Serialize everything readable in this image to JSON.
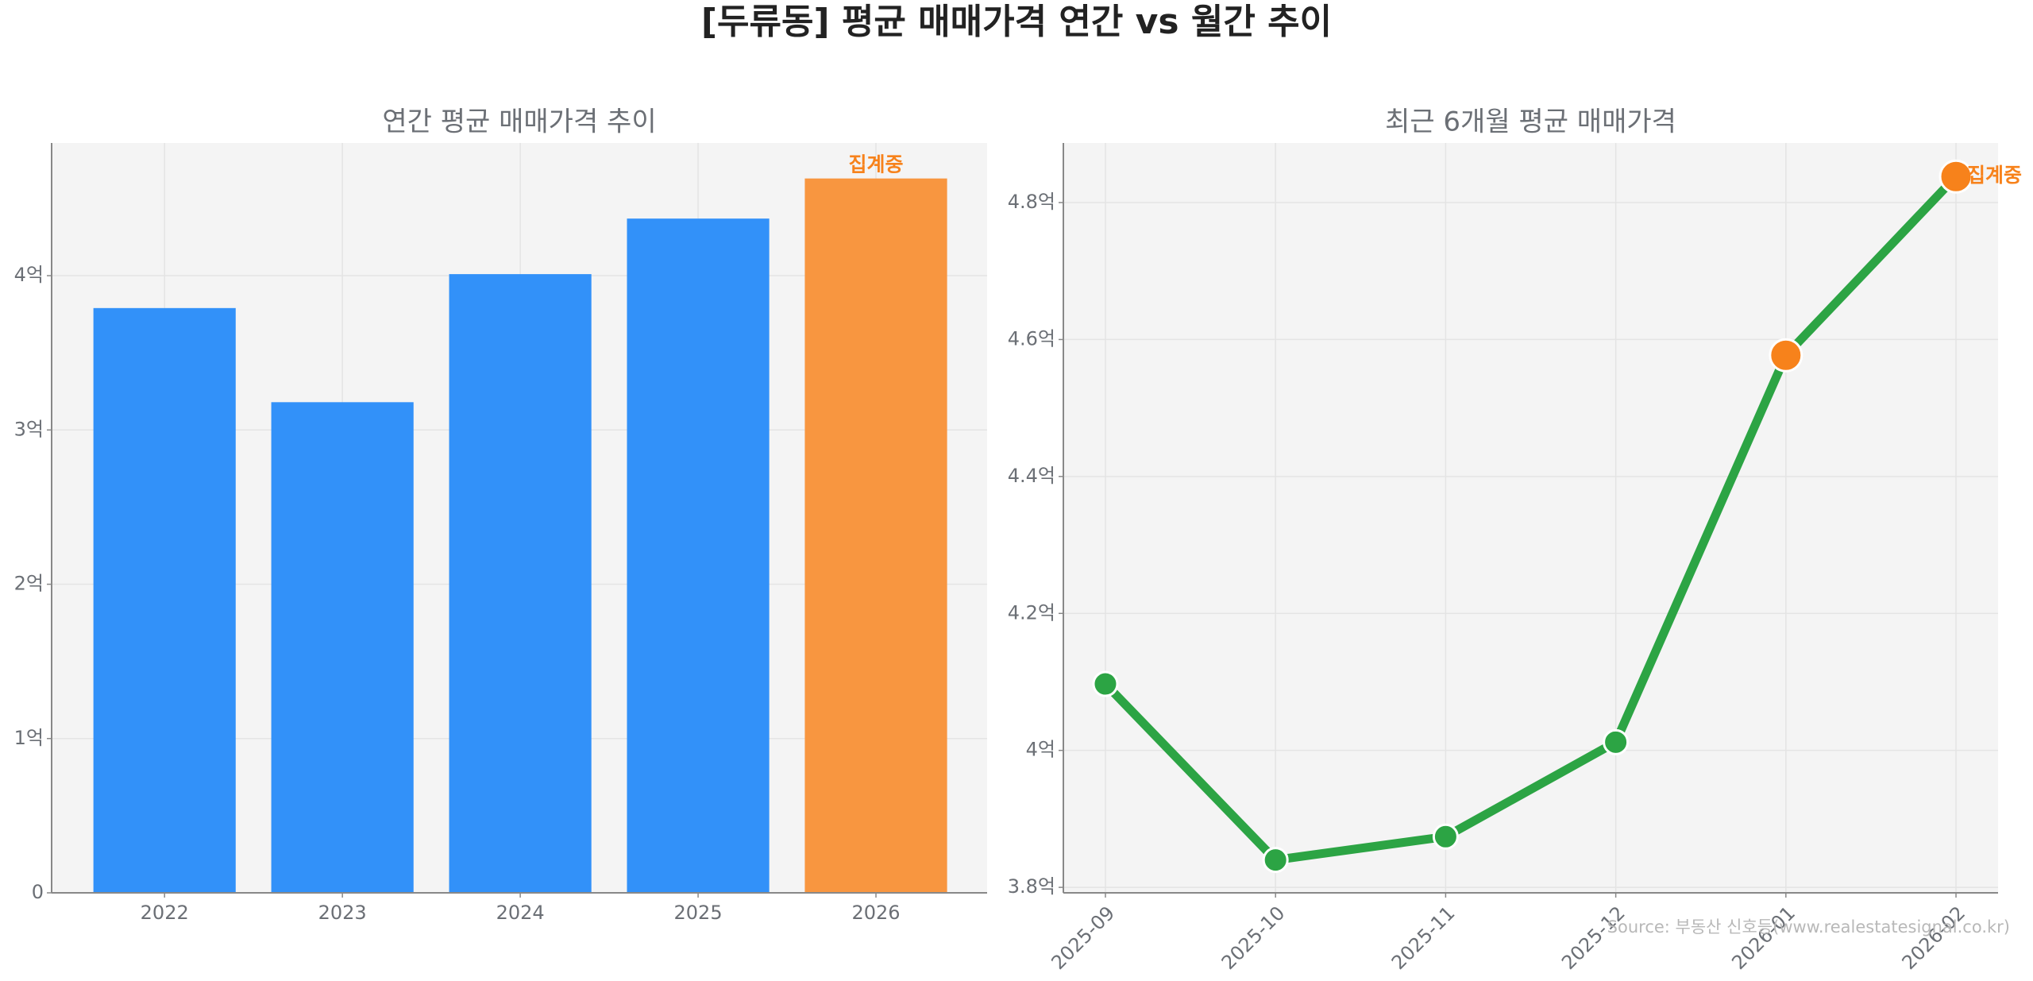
{
  "title": "[두류동] 평균 매매가격 연간 vs 월간 추이",
  "source": "Source: 부동산 신호등(www.realestatesignal.co.kr)",
  "chart_data": [
    {
      "type": "bar",
      "title": "연간 평균 매매가격 추이",
      "categories": [
        "2022",
        "2023",
        "2024",
        "2025",
        "2026"
      ],
      "values": [
        3.79,
        3.18,
        4.01,
        4.37,
        4.63
      ],
      "colors": [
        "#3291f9",
        "#3291f9",
        "#3291f9",
        "#3291f9",
        "#f89640"
      ],
      "ylim": [
        0,
        4.86
      ],
      "yticks": [
        0,
        {
          "value": 1,
          "label": "1억"
        },
        {
          "value": 2,
          "label": "2억"
        },
        {
          "value": 3,
          "label": "3억"
        },
        {
          "value": 4,
          "label": "4억"
        }
      ],
      "grid": true,
      "annotations": [
        {
          "text": "집계중",
          "x": "2026",
          "color": "#f7821b"
        }
      ]
    },
    {
      "type": "line",
      "title": "최근 6개월 평균 매매가격",
      "categories": [
        "2025-09",
        "2025-10",
        "2025-11",
        "2025-12",
        "2026-01",
        "2026-02"
      ],
      "values": [
        4.097,
        3.84,
        3.874,
        4.012,
        4.577,
        4.838
      ],
      "color": "#2ca444",
      "marker_colors": [
        "#2ca444",
        "#2ca444",
        "#2ca444",
        "#2ca444",
        "#f7821b",
        "#f7821b"
      ],
      "ylim": [
        3.792,
        4.887
      ],
      "yticks": [
        {
          "value": 3.8,
          "label": "3.8억"
        },
        {
          "value": 4.0,
          "label": "4억"
        },
        {
          "value": 4.2,
          "label": "4.2억"
        },
        {
          "value": 4.4,
          "label": "4.4억"
        },
        {
          "value": 4.6,
          "label": "4.6억"
        },
        {
          "value": 4.8,
          "label": "4.8억"
        }
      ],
      "grid": true,
      "annotations": [
        {
          "text": "집계중",
          "x": "2026-02",
          "color": "#f7821b"
        }
      ]
    }
  ]
}
